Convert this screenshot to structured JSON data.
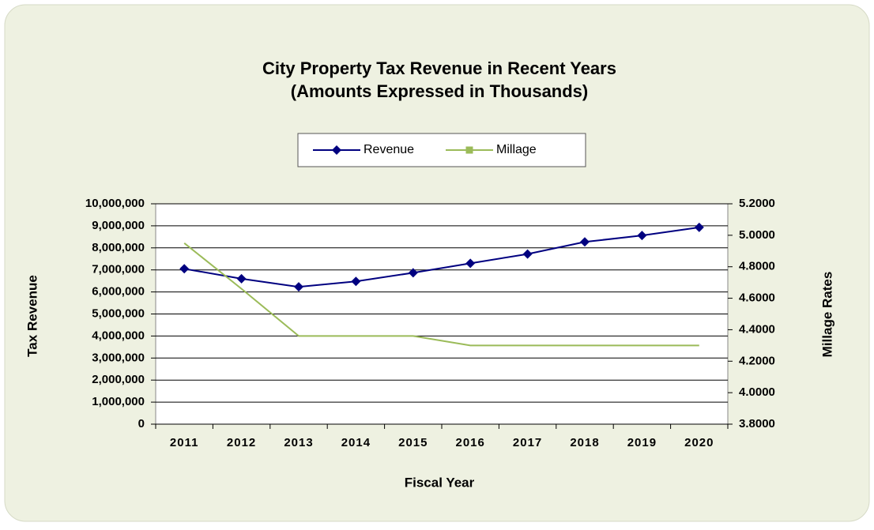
{
  "chart_data": {
    "type": "line",
    "title": "City Property Tax Revenue in Recent Years",
    "subtitle": "(Amounts Expressed in Thousands)",
    "x_label": "Fiscal Year",
    "y_label": "Tax Revenue",
    "y2_label": "Millage Rates",
    "categories": [
      "2011",
      "2012",
      "2013",
      "2014",
      "2015",
      "2016",
      "2017",
      "2018",
      "2019",
      "2020"
    ],
    "series": [
      {
        "name": "Revenue",
        "color": "#000080",
        "marker": "diamond",
        "values": [
          7050000,
          6600000,
          6230000,
          6480000,
          6870000,
          7300000,
          7720000,
          8270000,
          8560000,
          8930000
        ]
      },
      {
        "name": "Millage",
        "color": "#9bbb59",
        "marker": "square",
        "axis": "y2",
        "values": [
          4.95,
          4.66,
          4.36,
          4.36,
          4.36,
          4.3,
          4.3,
          4.3,
          4.3,
          4.3
        ]
      }
    ],
    "ylim": [
      0,
      10000000
    ],
    "yticks": [
      0,
      {
        "value": 1000000,
        "label": "1,000,000"
      },
      {
        "value": 2000000,
        "label": "2,000,000"
      },
      {
        "value": 3000000,
        "label": "3,000,000"
      },
      {
        "value": 4000000,
        "label": "4,000,000"
      },
      {
        "value": 5000000,
        "label": "5,000,000"
      },
      {
        "value": 6000000,
        "label": "6,000,000"
      },
      {
        "value": 7000000,
        "label": "7,000,000"
      },
      {
        "value": 8000000,
        "label": "8,000,000"
      },
      {
        "value": 9000000,
        "label": "9,000,000"
      },
      {
        "value": 10000000,
        "label": "10,000,000"
      }
    ],
    "y2lim": [
      3.8,
      5.2
    ],
    "y2ticks": [
      {
        "value": 3.8,
        "label": "3.8000"
      },
      {
        "value": 4.0,
        "label": "4.0000"
      },
      {
        "value": 4.2,
        "label": "4.2000"
      },
      {
        "value": 4.4,
        "label": "4.4000"
      },
      {
        "value": 4.6,
        "label": "4.6000"
      },
      {
        "value": 4.8,
        "label": "4.8000"
      },
      {
        "value": 5.0,
        "label": "5.0000"
      },
      {
        "value": 5.2,
        "label": "5.2000"
      }
    ],
    "grid": true,
    "legend": "top"
  }
}
